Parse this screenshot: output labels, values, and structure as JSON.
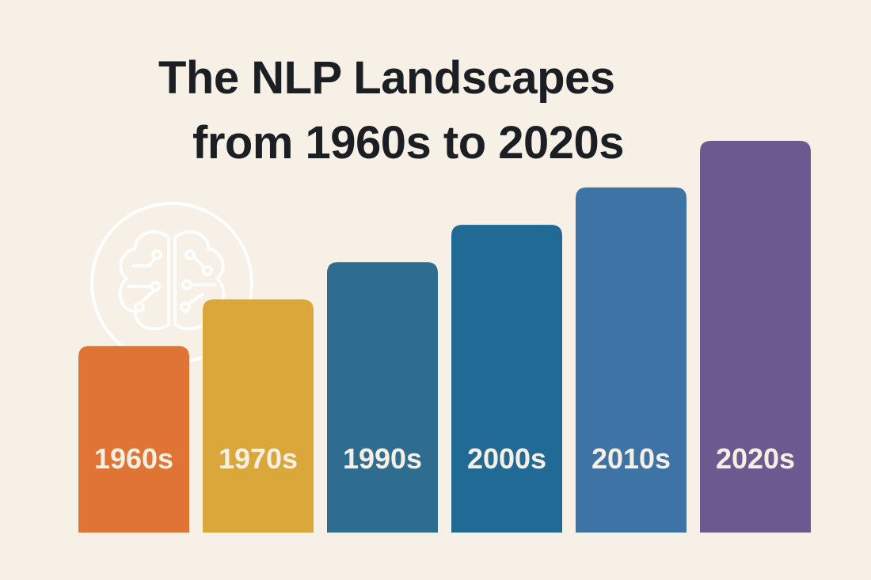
{
  "title_lines": [
    "The NLP Landscapes",
    "from 1960s to 2020s"
  ],
  "decoration": {
    "icon": "brain-circuit-icon",
    "color": "#ffffff"
  },
  "chart_data": {
    "type": "bar",
    "title": "The NLP Landscapes from 1960s to 2020s",
    "categories": [
      "1960s",
      "1970s",
      "1990s",
      "2000s",
      "2010s",
      "2020s"
    ],
    "values": [
      1,
      1.25,
      1.45,
      1.65,
      1.85,
      2.1
    ],
    "colors": [
      "#df7434",
      "#daa73b",
      "#2e6d8f",
      "#206a95",
      "#3d73a5",
      "#6a5a8f"
    ],
    "xlabel": "",
    "ylabel": "",
    "ylim": [
      0,
      2.1
    ],
    "axes_visible": false,
    "grid": false,
    "labels_inside_bars": true
  }
}
